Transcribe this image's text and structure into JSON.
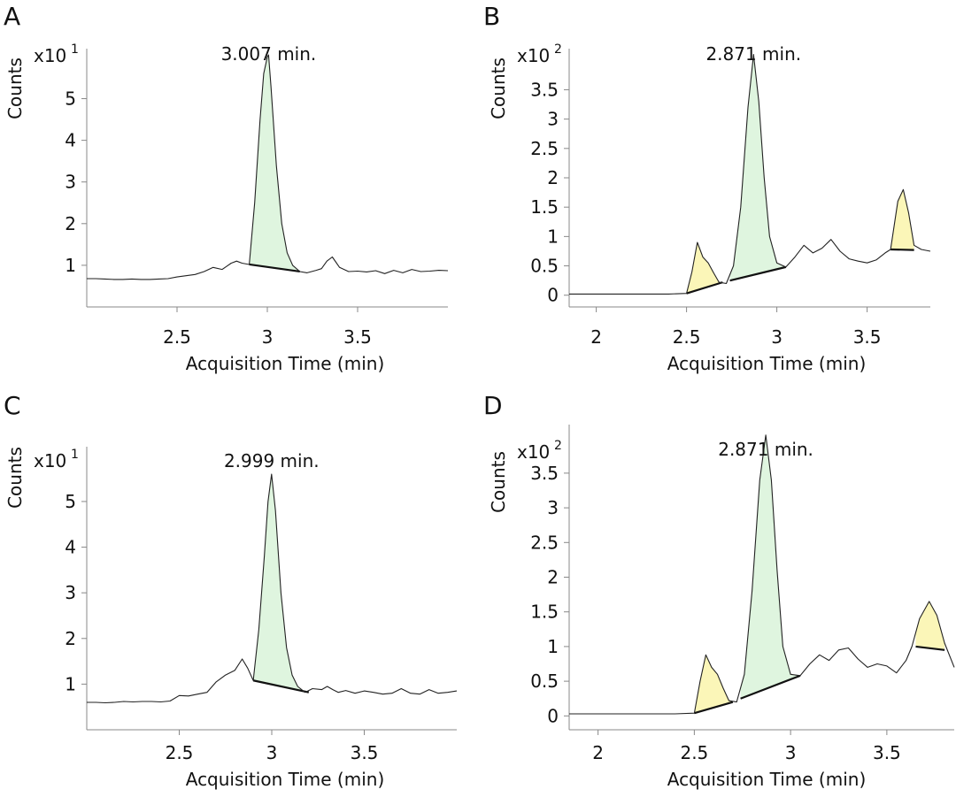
{
  "figure": {
    "title": ""
  },
  "chart_data": [
    {
      "panel": "A",
      "type": "line",
      "xlabel": "Acquisition Time (min)",
      "ylabel": "Counts",
      "y_scale_base": "x10",
      "y_scale_exp": "1",
      "xlim": [
        2.0,
        4.0
      ],
      "ylim": [
        0.0,
        6.2
      ],
      "xticks": [
        2.5,
        3,
        3.5
      ],
      "xtick_labels": [
        "2.5",
        "3",
        "3.5"
      ],
      "yticks": [
        1,
        2,
        3,
        4,
        5
      ],
      "ytick_labels": [
        "1",
        "2",
        "3",
        "4",
        "5"
      ],
      "peak_label": "3.007 min.",
      "peak_time": 3.007,
      "trace": {
        "x": [
          2.0,
          2.05,
          2.1,
          2.15,
          2.2,
          2.25,
          2.3,
          2.35,
          2.4,
          2.45,
          2.5,
          2.55,
          2.6,
          2.65,
          2.7,
          2.75,
          2.8,
          2.83,
          2.86,
          2.9,
          2.93,
          2.96,
          2.98,
          3.0,
          3.007,
          3.02,
          3.05,
          3.08,
          3.11,
          3.14,
          3.18,
          3.22,
          3.27,
          3.3,
          3.33,
          3.36,
          3.4,
          3.45,
          3.5,
          3.55,
          3.6,
          3.65,
          3.7,
          3.75,
          3.8,
          3.85,
          3.9,
          3.95,
          4.0
        ],
        "y": [
          0.68,
          0.68,
          0.67,
          0.66,
          0.66,
          0.67,
          0.66,
          0.66,
          0.67,
          0.68,
          0.72,
          0.75,
          0.78,
          0.85,
          0.95,
          0.9,
          1.05,
          1.1,
          1.05,
          1.02,
          2.5,
          4.5,
          5.6,
          6.0,
          6.05,
          5.3,
          3.4,
          2.0,
          1.3,
          1.0,
          0.85,
          0.82,
          0.88,
          0.92,
          1.1,
          1.2,
          0.95,
          0.85,
          0.86,
          0.84,
          0.87,
          0.8,
          0.88,
          0.82,
          0.9,
          0.85,
          0.86,
          0.88,
          0.87
        ]
      },
      "peaks": [
        {
          "start": 2.9,
          "end": 3.18,
          "base_start": 1.02,
          "base_end": 0.85,
          "color": "#dff5df"
        }
      ]
    },
    {
      "panel": "B",
      "type": "line",
      "xlabel": "Acquisition Time (min)",
      "ylabel": "Counts",
      "y_scale_base": "x10",
      "y_scale_exp": "2",
      "xlim": [
        1.85,
        3.85
      ],
      "ylim": [
        -0.2,
        4.2
      ],
      "xticks": [
        2,
        2.5,
        3,
        3.5
      ],
      "xtick_labels": [
        "2",
        "2.5",
        "3",
        "3.5"
      ],
      "yticks": [
        0,
        0.5,
        1,
        1.5,
        2,
        2.5,
        3,
        3.5
      ],
      "ytick_labels": [
        "0",
        "0.5",
        "1",
        "1.5",
        "2",
        "2.5",
        "3",
        "3.5"
      ],
      "peak_label": "2.871 min.",
      "peak_time": 2.871,
      "trace": {
        "x": [
          1.85,
          2.0,
          2.2,
          2.4,
          2.5,
          2.53,
          2.56,
          2.59,
          2.62,
          2.65,
          2.68,
          2.72,
          2.76,
          2.8,
          2.84,
          2.871,
          2.9,
          2.93,
          2.96,
          3.0,
          3.05,
          3.1,
          3.15,
          3.2,
          3.25,
          3.3,
          3.35,
          3.4,
          3.45,
          3.5,
          3.55,
          3.6,
          3.63,
          3.67,
          3.7,
          3.73,
          3.76,
          3.8,
          3.85
        ],
        "y": [
          0.02,
          0.02,
          0.02,
          0.02,
          0.03,
          0.4,
          0.9,
          0.65,
          0.55,
          0.38,
          0.22,
          0.2,
          0.5,
          1.5,
          3.2,
          4.1,
          3.3,
          2.0,
          1.0,
          0.55,
          0.48,
          0.65,
          0.85,
          0.72,
          0.8,
          0.95,
          0.75,
          0.62,
          0.58,
          0.55,
          0.6,
          0.72,
          0.78,
          1.6,
          1.8,
          1.4,
          0.85,
          0.78,
          0.75
        ]
      },
      "peaks": [
        {
          "start": 2.5,
          "end": 2.7,
          "base_start": 0.03,
          "base_end": 0.22,
          "color": "#fbf6b8"
        },
        {
          "start": 2.74,
          "end": 3.05,
          "base_start": 0.25,
          "base_end": 0.48,
          "color": "#dff5df"
        },
        {
          "start": 3.63,
          "end": 3.76,
          "base_start": 0.78,
          "base_end": 0.77,
          "color": "#fbf6b8"
        }
      ]
    },
    {
      "panel": "C",
      "type": "line",
      "xlabel": "Acquisition Time (min)",
      "ylabel": "Counts",
      "y_scale_base": "x10",
      "y_scale_exp": "1",
      "xlim": [
        2.0,
        4.0
      ],
      "ylim": [
        0.0,
        6.2
      ],
      "xticks": [
        2.5,
        3,
        3.5
      ],
      "xtick_labels": [
        "2.5",
        "3",
        "3.5"
      ],
      "yticks": [
        1,
        2,
        3,
        4,
        5
      ],
      "ytick_labels": [
        "1",
        "2",
        "3",
        "4",
        "5"
      ],
      "peak_label": "2.999 min.",
      "peak_time": 2.999,
      "trace": {
        "x": [
          2.0,
          2.05,
          2.1,
          2.15,
          2.2,
          2.25,
          2.3,
          2.35,
          2.4,
          2.45,
          2.5,
          2.55,
          2.6,
          2.65,
          2.7,
          2.75,
          2.8,
          2.84,
          2.87,
          2.9,
          2.93,
          2.96,
          2.98,
          2.999,
          3.02,
          3.05,
          3.08,
          3.11,
          3.14,
          3.18,
          3.22,
          3.27,
          3.3,
          3.33,
          3.36,
          3.4,
          3.45,
          3.5,
          3.55,
          3.6,
          3.65,
          3.7,
          3.75,
          3.8,
          3.85,
          3.9,
          3.95,
          4.0
        ],
        "y": [
          0.6,
          0.6,
          0.59,
          0.6,
          0.62,
          0.61,
          0.62,
          0.62,
          0.61,
          0.63,
          0.75,
          0.74,
          0.78,
          0.82,
          1.05,
          1.2,
          1.3,
          1.55,
          1.35,
          1.08,
          2.2,
          3.8,
          5.0,
          5.6,
          4.8,
          3.0,
          1.8,
          1.2,
          0.95,
          0.82,
          0.9,
          0.88,
          0.95,
          0.88,
          0.82,
          0.86,
          0.8,
          0.85,
          0.82,
          0.78,
          0.8,
          0.9,
          0.8,
          0.78,
          0.88,
          0.8,
          0.82,
          0.85
        ]
      },
      "peaks": [
        {
          "start": 2.9,
          "end": 3.2,
          "base_start": 1.08,
          "base_end": 0.82,
          "color": "#dff5df"
        }
      ]
    },
    {
      "panel": "D",
      "type": "line",
      "xlabel": "Acquisition Time (min)",
      "ylabel": "Counts",
      "y_scale_base": "x10",
      "y_scale_exp": "2",
      "xlim": [
        1.85,
        3.85
      ],
      "ylim": [
        -0.2,
        4.2
      ],
      "xticks": [
        2,
        2.5,
        3,
        3.5
      ],
      "xtick_labels": [
        "2",
        "2.5",
        "3",
        "3.5"
      ],
      "yticks": [
        0,
        0.5,
        1,
        1.5,
        2,
        2.5,
        3,
        3.5
      ],
      "ytick_labels": [
        "0",
        "0.5",
        "1",
        "1.5",
        "2",
        "2.5",
        "3",
        "3.5"
      ],
      "peak_label": "2.871 min.",
      "peak_time": 2.871,
      "trace": {
        "x": [
          1.85,
          2.0,
          2.2,
          2.4,
          2.5,
          2.53,
          2.56,
          2.59,
          2.62,
          2.65,
          2.68,
          2.72,
          2.76,
          2.8,
          2.84,
          2.871,
          2.9,
          2.93,
          2.96,
          3.0,
          3.05,
          3.1,
          3.15,
          3.2,
          3.25,
          3.3,
          3.35,
          3.4,
          3.45,
          3.5,
          3.55,
          3.6,
          3.63,
          3.67,
          3.72,
          3.76,
          3.8,
          3.85
        ],
        "y": [
          0.03,
          0.03,
          0.03,
          0.03,
          0.04,
          0.5,
          0.88,
          0.7,
          0.6,
          0.4,
          0.22,
          0.2,
          0.6,
          1.8,
          3.4,
          4.05,
          3.4,
          2.1,
          1.0,
          0.6,
          0.58,
          0.75,
          0.88,
          0.8,
          0.95,
          0.98,
          0.82,
          0.7,
          0.75,
          0.72,
          0.62,
          0.8,
          1.0,
          1.4,
          1.65,
          1.45,
          1.05,
          0.7
        ]
      },
      "peaks": [
        {
          "start": 2.5,
          "end": 2.7,
          "base_start": 0.04,
          "base_end": 0.2,
          "color": "#fbf6b8"
        },
        {
          "start": 2.74,
          "end": 3.05,
          "base_start": 0.25,
          "base_end": 0.58,
          "color": "#dff5df"
        },
        {
          "start": 3.65,
          "end": 3.8,
          "base_start": 1.0,
          "base_end": 0.95,
          "color": "#fbf6b8"
        }
      ]
    }
  ]
}
